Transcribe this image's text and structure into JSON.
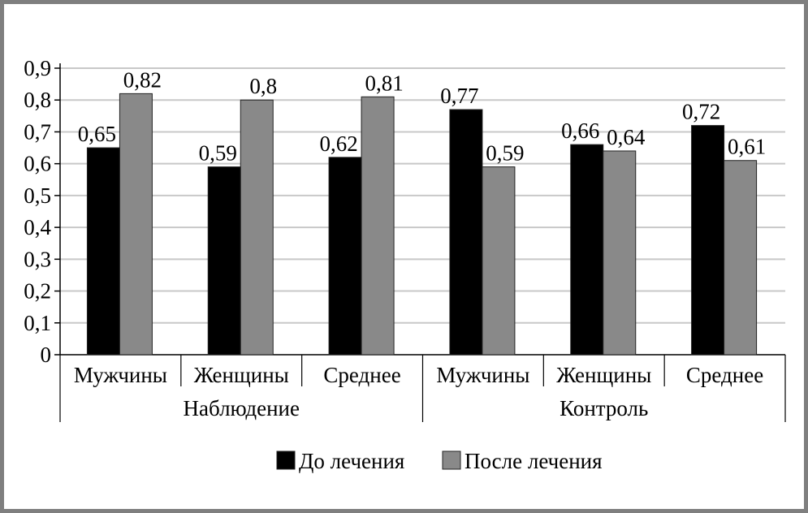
{
  "chart_data": {
    "type": "bar",
    "title": "",
    "xlabel": "",
    "ylabel": "",
    "ylim": [
      0,
      0.9
    ],
    "yticks": [
      "0",
      "0,1",
      "0,2",
      "0,3",
      "0,4",
      "0,5",
      "0,6",
      "0,7",
      "0,8",
      "0,9"
    ],
    "grid": true,
    "legend_position": "bottom",
    "groups": [
      {
        "label": "Наблюдение",
        "categories": [
          "Мужчины",
          "Женщины",
          "Среднее"
        ]
      },
      {
        "label": "Контроль",
        "categories": [
          "Мужчины",
          "Женщины",
          "Среднее"
        ]
      }
    ],
    "categories": [
      "Мужчины",
      "Женщины",
      "Среднее",
      "Мужчины",
      "Женщины",
      "Среднее"
    ],
    "series": [
      {
        "name": "До лечения",
        "color": "#000000",
        "values": [
          0.65,
          0.59,
          0.62,
          0.77,
          0.66,
          0.72
        ],
        "labels": [
          "0,65",
          "0,59",
          "0,62",
          "0,77",
          "0,66",
          "0,72"
        ]
      },
      {
        "name": "После лечения",
        "color": "#898989",
        "values": [
          0.82,
          0.8,
          0.81,
          0.59,
          0.64,
          0.61
        ],
        "labels": [
          "0,82",
          "0,8",
          "0,81",
          "0,59",
          "0,64",
          "0,61"
        ]
      }
    ]
  }
}
